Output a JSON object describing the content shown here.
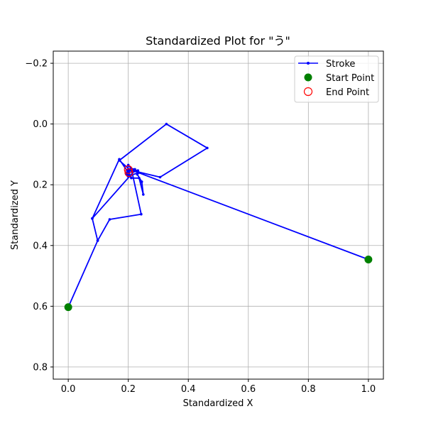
{
  "chart_data": {
    "type": "line",
    "title": "Standardized Plot for \"う\"",
    "xlabel": "Standardized X",
    "ylabel": "Standardized Y",
    "xlim": [
      -0.05,
      1.05
    ],
    "ylim": [
      0.84,
      -0.24
    ],
    "y_inverted": true,
    "grid": true,
    "legend_position": "top-right",
    "xticks": [
      0.0,
      0.2,
      0.4,
      0.6,
      0.8,
      1.0
    ],
    "xtick_labels": [
      "0.0",
      "0.2",
      "0.4",
      "0.6",
      "0.8",
      "1.0"
    ],
    "yticks": [
      -0.2,
      0.0,
      0.2,
      0.4,
      0.6,
      0.8
    ],
    "ytick_labels": [
      "−0.2",
      "0.0",
      "0.2",
      "0.4",
      "0.6",
      "0.8"
    ],
    "series": [
      {
        "name": "Stroke",
        "color": "#0000ff",
        "marker": "dot",
        "points": [
          [
            0.0,
            0.603
          ],
          [
            0.098,
            0.384
          ],
          [
            0.08,
            0.311
          ],
          [
            0.17,
            0.116
          ],
          [
            0.2,
            0.16
          ],
          [
            0.208,
            0.149
          ],
          [
            0.22,
            0.153
          ],
          [
            0.232,
            0.153
          ],
          [
            0.23,
            0.166
          ],
          [
            0.245,
            0.19
          ],
          [
            0.25,
            0.232
          ],
          [
            0.236,
            0.178
          ],
          [
            0.21,
            0.178
          ],
          [
            0.202,
            0.16
          ],
          [
            0.197,
            0.16
          ],
          [
            0.2,
            0.135
          ],
          [
            0.209,
            0.146
          ],
          [
            0.222,
            0.149
          ],
          [
            0.235,
            0.16
          ],
          [
            0.199,
            0.172
          ],
          [
            0.195,
            0.165
          ],
          [
            0.207,
            0.172
          ],
          [
            0.195,
            0.16
          ],
          [
            0.205,
            0.153
          ],
          [
            0.2,
            0.15
          ],
          [
            0.306,
            0.175
          ],
          [
            0.463,
            0.079
          ],
          [
            0.327,
            0.0
          ],
          [
            0.17,
            0.12
          ],
          [
            0.212,
            0.156
          ],
          [
            0.243,
            0.297
          ],
          [
            0.138,
            0.314
          ],
          [
            0.098,
            0.384
          ],
          [
            0.08,
            0.311
          ],
          [
            0.22,
            0.155
          ],
          [
            1.0,
            0.446
          ]
        ]
      },
      {
        "name": "Start Point",
        "color": "#008000",
        "marker": "filled-circle",
        "points": [
          [
            0.0,
            0.603
          ],
          [
            1.0,
            0.446
          ]
        ]
      },
      {
        "name": "End Point",
        "color": "#ff0000",
        "marker": "open-circle",
        "points": [
          [
            0.2,
            0.15
          ],
          [
            0.202,
            0.16
          ]
        ]
      }
    ]
  }
}
